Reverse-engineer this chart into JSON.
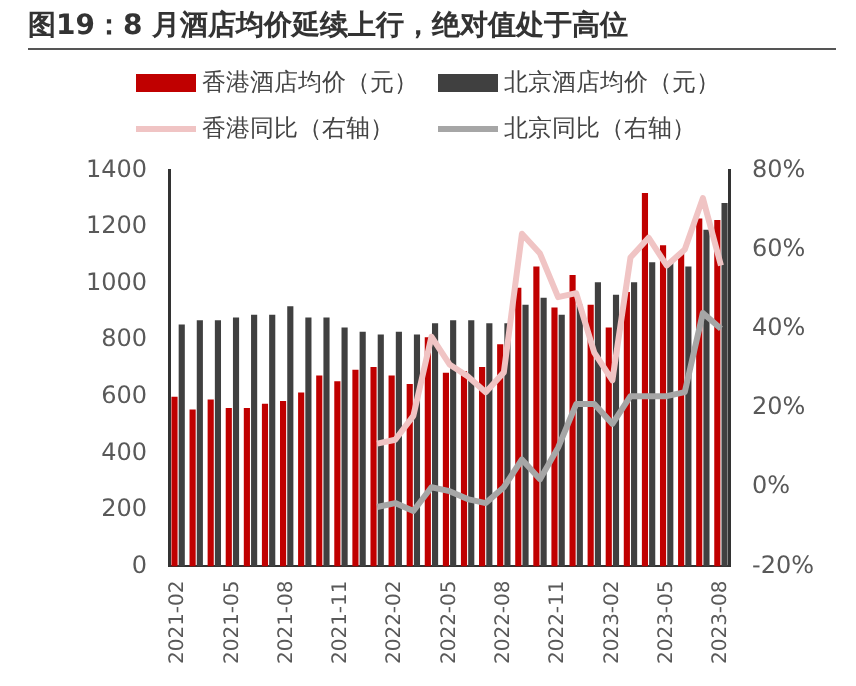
{
  "chart_data": {
    "type": "bar",
    "title": "图19：8 月酒店均价延续上行，绝对值处于高位",
    "categories": [
      "2021-02",
      null,
      null,
      "2021-05",
      null,
      null,
      "2021-08",
      null,
      null,
      "2021-11",
      null,
      null,
      "2022-02",
      null,
      null,
      "2022-05",
      null,
      null,
      "2022-08",
      null,
      null,
      "2022-11",
      null,
      null,
      "2023-02",
      null,
      null,
      "2023-05",
      null,
      null,
      "2023-08"
    ],
    "series": [
      {
        "name": "香港酒店均价（元）",
        "color": "#c00000",
        "values": [
          600,
          555,
          590,
          560,
          560,
          575,
          585,
          615,
          675,
          655,
          695,
          705,
          675,
          645,
          810,
          685,
          690,
          705,
          785,
          985,
          1060,
          915,
          1030,
          925,
          845,
          970,
          1320,
          1135,
          1110,
          1230,
          1225
        ]
      },
      {
        "name": "北京酒店均价（元）",
        "color": "#404040",
        "values": [
          855,
          870,
          870,
          880,
          890,
          890,
          920,
          880,
          880,
          845,
          830,
          820,
          830,
          820,
          860,
          870,
          870,
          860,
          860,
          925,
          950,
          890,
          925,
          1005,
          960,
          1005,
          1075,
          1075,
          1060,
          1190,
          1285
        ]
      },
      {
        "name": "香港同比（右轴）",
        "type": "line",
        "axis": "y2",
        "color": "#f0c4c4",
        "values": [
          null,
          null,
          null,
          null,
          null,
          null,
          null,
          null,
          null,
          null,
          null,
          11,
          12,
          18,
          38,
          31,
          28,
          24,
          29,
          64,
          59,
          48,
          49,
          34,
          27,
          58,
          63,
          56,
          60,
          73,
          56
        ]
      },
      {
        "name": "北京同比（右轴）",
        "type": "line",
        "axis": "y2",
        "color": "#a6a6a6",
        "values": [
          null,
          null,
          null,
          null,
          null,
          null,
          null,
          null,
          null,
          null,
          null,
          -5,
          -4,
          -6,
          0,
          -1,
          -3,
          -4,
          0,
          7,
          2,
          10,
          21,
          21,
          16,
          23,
          23,
          23,
          24,
          44,
          40
        ]
      }
    ],
    "ylim": [
      0,
      1400
    ],
    "yticks": [
      0,
      200,
      400,
      600,
      800,
      1000,
      1200,
      1400
    ],
    "y2lim": [
      -20,
      80
    ],
    "y2ticks": [
      {
        "value": -20,
        "label": "-20%"
      },
      {
        "value": 0,
        "label": "0%"
      },
      {
        "value": 20,
        "label": "20%"
      },
      {
        "value": 40,
        "label": "40%"
      },
      {
        "value": 60,
        "label": "60%"
      },
      {
        "value": 80,
        "label": "80%"
      }
    ],
    "legend": "top",
    "grid": false
  }
}
